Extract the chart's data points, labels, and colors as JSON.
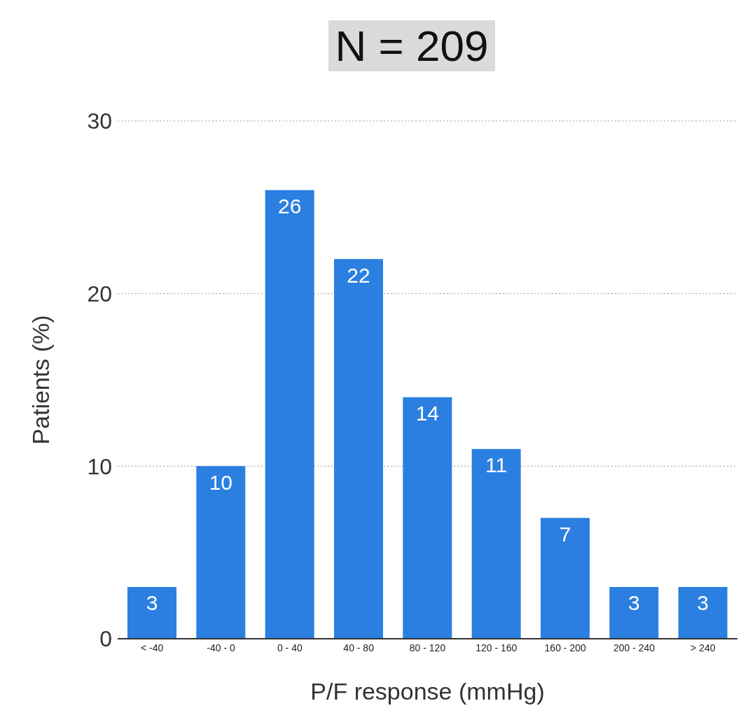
{
  "chart_data": {
    "type": "bar",
    "title": "N = 209",
    "xlabel": "P/F response (mmHg)",
    "ylabel": "Patients (%)",
    "categories": [
      "< -40",
      "-40 - 0",
      "0 - 40",
      "40 - 80",
      "80 - 120",
      "120 - 160",
      "160 - 200",
      "200 - 240",
      "> 240"
    ],
    "values": [
      3,
      10,
      26,
      22,
      14,
      11,
      7,
      3,
      3
    ],
    "color": "#2b7fe0",
    "ylim": [
      0,
      30
    ],
    "yticks": [
      0,
      10,
      20,
      30
    ],
    "grid": "y",
    "data_labels": true
  }
}
